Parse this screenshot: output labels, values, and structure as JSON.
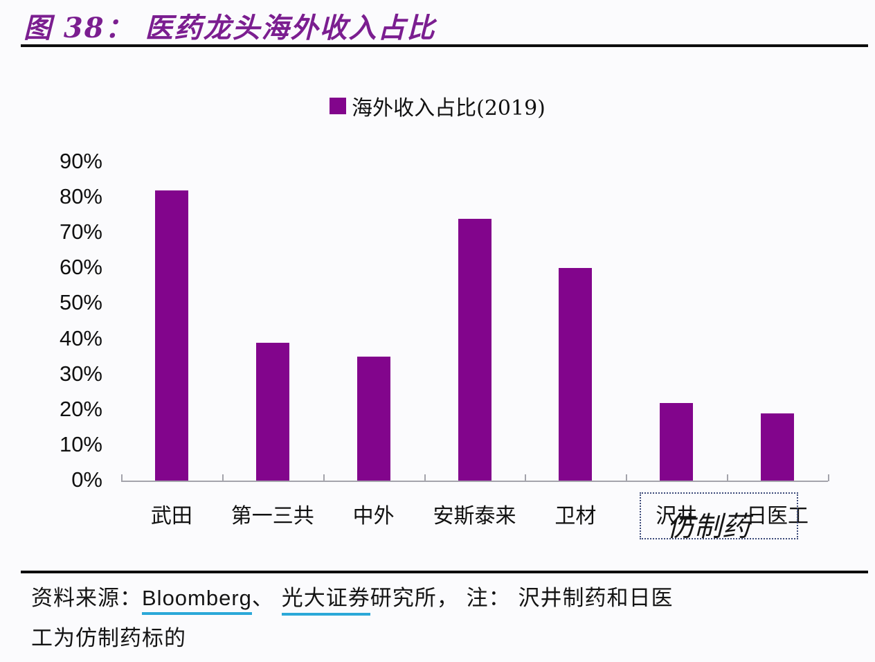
{
  "figure_title": "图 38：  医药龙头海外收入占比",
  "chart_data": {
    "type": "bar",
    "title": "医药龙头海外收入占比",
    "legend": [
      {
        "label": "海外收入占比(2019)",
        "color": "#82058C"
      }
    ],
    "legend_position": "top-center",
    "categories": [
      "武田",
      "第一三共",
      "中外",
      "安斯泰来",
      "卫材",
      "沢井",
      "日医工"
    ],
    "values": [
      82,
      39,
      35,
      74,
      60,
      22,
      19
    ],
    "value_unit": "%",
    "xlabel": "",
    "ylabel": "",
    "ylim": [
      0,
      90
    ],
    "yticks": [
      0,
      10,
      20,
      30,
      40,
      50,
      60,
      70,
      80,
      90
    ],
    "ytick_labels": [
      "0%",
      "10%",
      "20%",
      "30%",
      "40%",
      "50%",
      "60%",
      "70%",
      "80%",
      "90%"
    ],
    "grid": false,
    "bar_color": "#82058C",
    "annotation": {
      "label": "仿制药",
      "applies_to": [
        "沢井",
        "日医工"
      ],
      "style": "dashed-box"
    }
  },
  "footer": {
    "prefix": "资料来源：",
    "link1": "Bloomberg",
    "separator": "、 ",
    "link2": "光大证券",
    "rest_line1": "研究所， 注： 沢井制药和日医",
    "line2": "工为仿制药标的",
    "link_underline_color": "#2BA8D8"
  },
  "colors": {
    "title": "#7B1E90",
    "bar": "#82058C",
    "axis": "#A3A3AB",
    "text": "#1A1A1A",
    "annotation_box": "#3A4878",
    "link_underline": "#2BA8D8",
    "background": "#FBFBFD"
  }
}
